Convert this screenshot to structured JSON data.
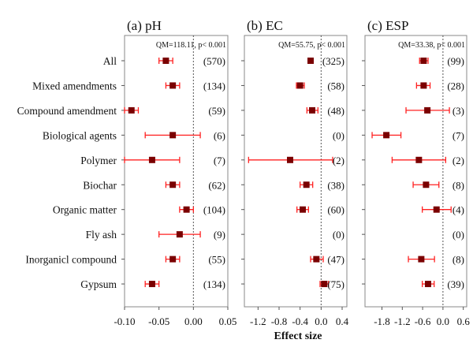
{
  "chart_data": {
    "type": "forest",
    "xlabel": "Effect size",
    "categories": [
      "All",
      "Mixed amendments",
      "Compound amendment",
      "Biological agents",
      "Polymer",
      "Biochar",
      "Organic matter",
      "Fly ash",
      "Inorganicl compound",
      "Gypsum"
    ],
    "panels": [
      {
        "title": "(a) pH",
        "stat": "QM=118.11, p< 0.001",
        "xlim": [
          -0.1,
          0.05
        ],
        "ticks": [
          -0.1,
          -0.05,
          0.0,
          0.05
        ],
        "tick_labels": [
          "-0.10",
          "-0.05",
          "0.00",
          "0.05"
        ],
        "estimates": [
          -0.04,
          -0.03,
          -0.09,
          -0.03,
          -0.06,
          -0.03,
          -0.01,
          -0.02,
          -0.03,
          -0.06
        ],
        "ci_low": [
          -0.05,
          -0.04,
          -0.1,
          -0.07,
          -0.1,
          -0.04,
          -0.02,
          -0.05,
          -0.04,
          -0.07
        ],
        "ci_high": [
          -0.03,
          -0.02,
          -0.08,
          0.01,
          -0.02,
          -0.02,
          0.0,
          0.01,
          -0.02,
          -0.05
        ],
        "n": [
          "(570)",
          "(134)",
          "(59)",
          "(6)",
          "(7)",
          "(62)",
          "(104)",
          "(9)",
          "(55)",
          "(134)"
        ]
      },
      {
        "title": "(b) EC",
        "stat": "QM=55.75, p< 0.001",
        "xlim": [
          -1.46,
          0.49
        ],
        "ticks": [
          -1.2,
          -0.8,
          -0.4,
          0.0,
          0.4
        ],
        "tick_labels": [
          "-1.2",
          "-0.8",
          "-0.4",
          "0.0",
          "0.4"
        ],
        "estimates": [
          -0.2,
          -0.4,
          -0.17,
          null,
          -0.59,
          -0.28,
          -0.35,
          null,
          -0.09,
          0.06
        ],
        "ci_low": [
          -0.24,
          -0.47,
          -0.27,
          null,
          -1.38,
          -0.4,
          -0.46,
          null,
          -0.2,
          -0.02
        ],
        "ci_high": [
          -0.15,
          -0.32,
          -0.06,
          null,
          0.22,
          -0.16,
          -0.24,
          null,
          0.04,
          0.14
        ],
        "n": [
          "(325)",
          "(58)",
          "(48)",
          "(0)",
          "(2)",
          "(38)",
          "(60)",
          "(0)",
          "(47)",
          "(75)"
        ]
      },
      {
        "title": "(c) ESP",
        "stat": "QM=33.38, p< 0.001",
        "xlim": [
          -2.3,
          0.7
        ],
        "ticks": [
          -1.8,
          -1.2,
          -0.6,
          0.0,
          0.6
        ],
        "tick_labels": [
          "-1.8",
          "-1.2",
          "-0.6",
          "0.0",
          "0.6"
        ],
        "estimates": [
          -0.57,
          -0.57,
          -0.46,
          -1.67,
          -0.71,
          -0.5,
          -0.19,
          null,
          -0.64,
          -0.44
        ],
        "ci_low": [
          -0.69,
          -0.78,
          -1.09,
          -2.09,
          -1.5,
          -0.88,
          -0.61,
          null,
          -1.02,
          -0.61
        ],
        "ci_high": [
          -0.44,
          -0.38,
          0.19,
          -1.24,
          0.08,
          -0.12,
          0.24,
          null,
          -0.25,
          -0.26
        ],
        "n": [
          "(99)",
          "(28)",
          "(3)",
          "(7)",
          "(2)",
          "(8)",
          "(4)",
          "(0)",
          "(8)",
          "(39)"
        ]
      }
    ],
    "colors": {
      "point": "#7a0000",
      "ci": "#ff2020",
      "zero_line": "#555555",
      "frame": "#888888"
    }
  }
}
